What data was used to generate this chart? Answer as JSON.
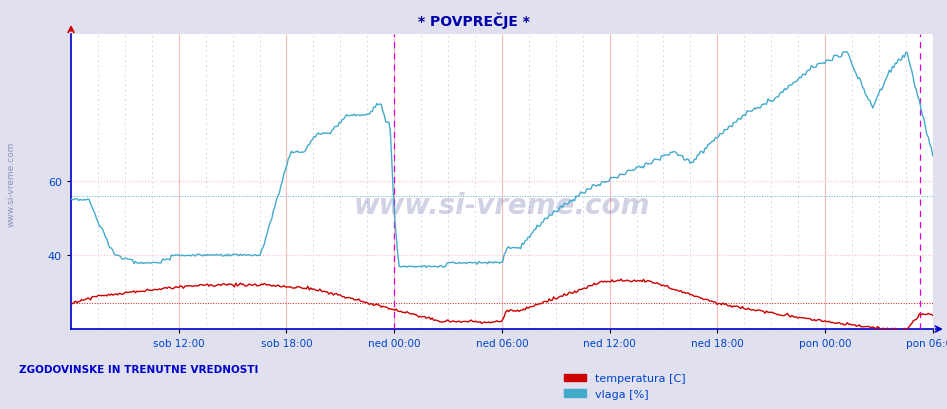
{
  "title": "* POVPREČJE *",
  "bg_color": "#e0e0ee",
  "plot_bg_color": "#ffffff",
  "temp_color": "#cc0000",
  "vlaga_color": "#44aacc",
  "temp_label": "temperatura [C]",
  "vlaga_label": "vlaga [%]",
  "footer_text": "ZGODOVINSKE IN TRENUTNE VREDNOSTI",
  "label_color": "#0044cc",
  "title_color": "#0000aa",
  "axis_color": "#0000cc",
  "grid_pink": "#ffbbbb",
  "grid_gray": "#ccccdd",
  "vline_magenta": [
    0.375,
    0.985
  ],
  "ylim": [
    20,
    100
  ],
  "y_ticks": [
    40,
    60
  ],
  "x_tick_labels": [
    "sob 12:00",
    "sob 18:00",
    "ned 00:00",
    "ned 06:00",
    "ned 12:00",
    "ned 18:00",
    "pon 00:00",
    "pon 06:00"
  ],
  "vlaga_mean": 56,
  "temp_mean": 27,
  "watermark": "www.si-vreme.com",
  "side_text": "www.si-vreme.com"
}
